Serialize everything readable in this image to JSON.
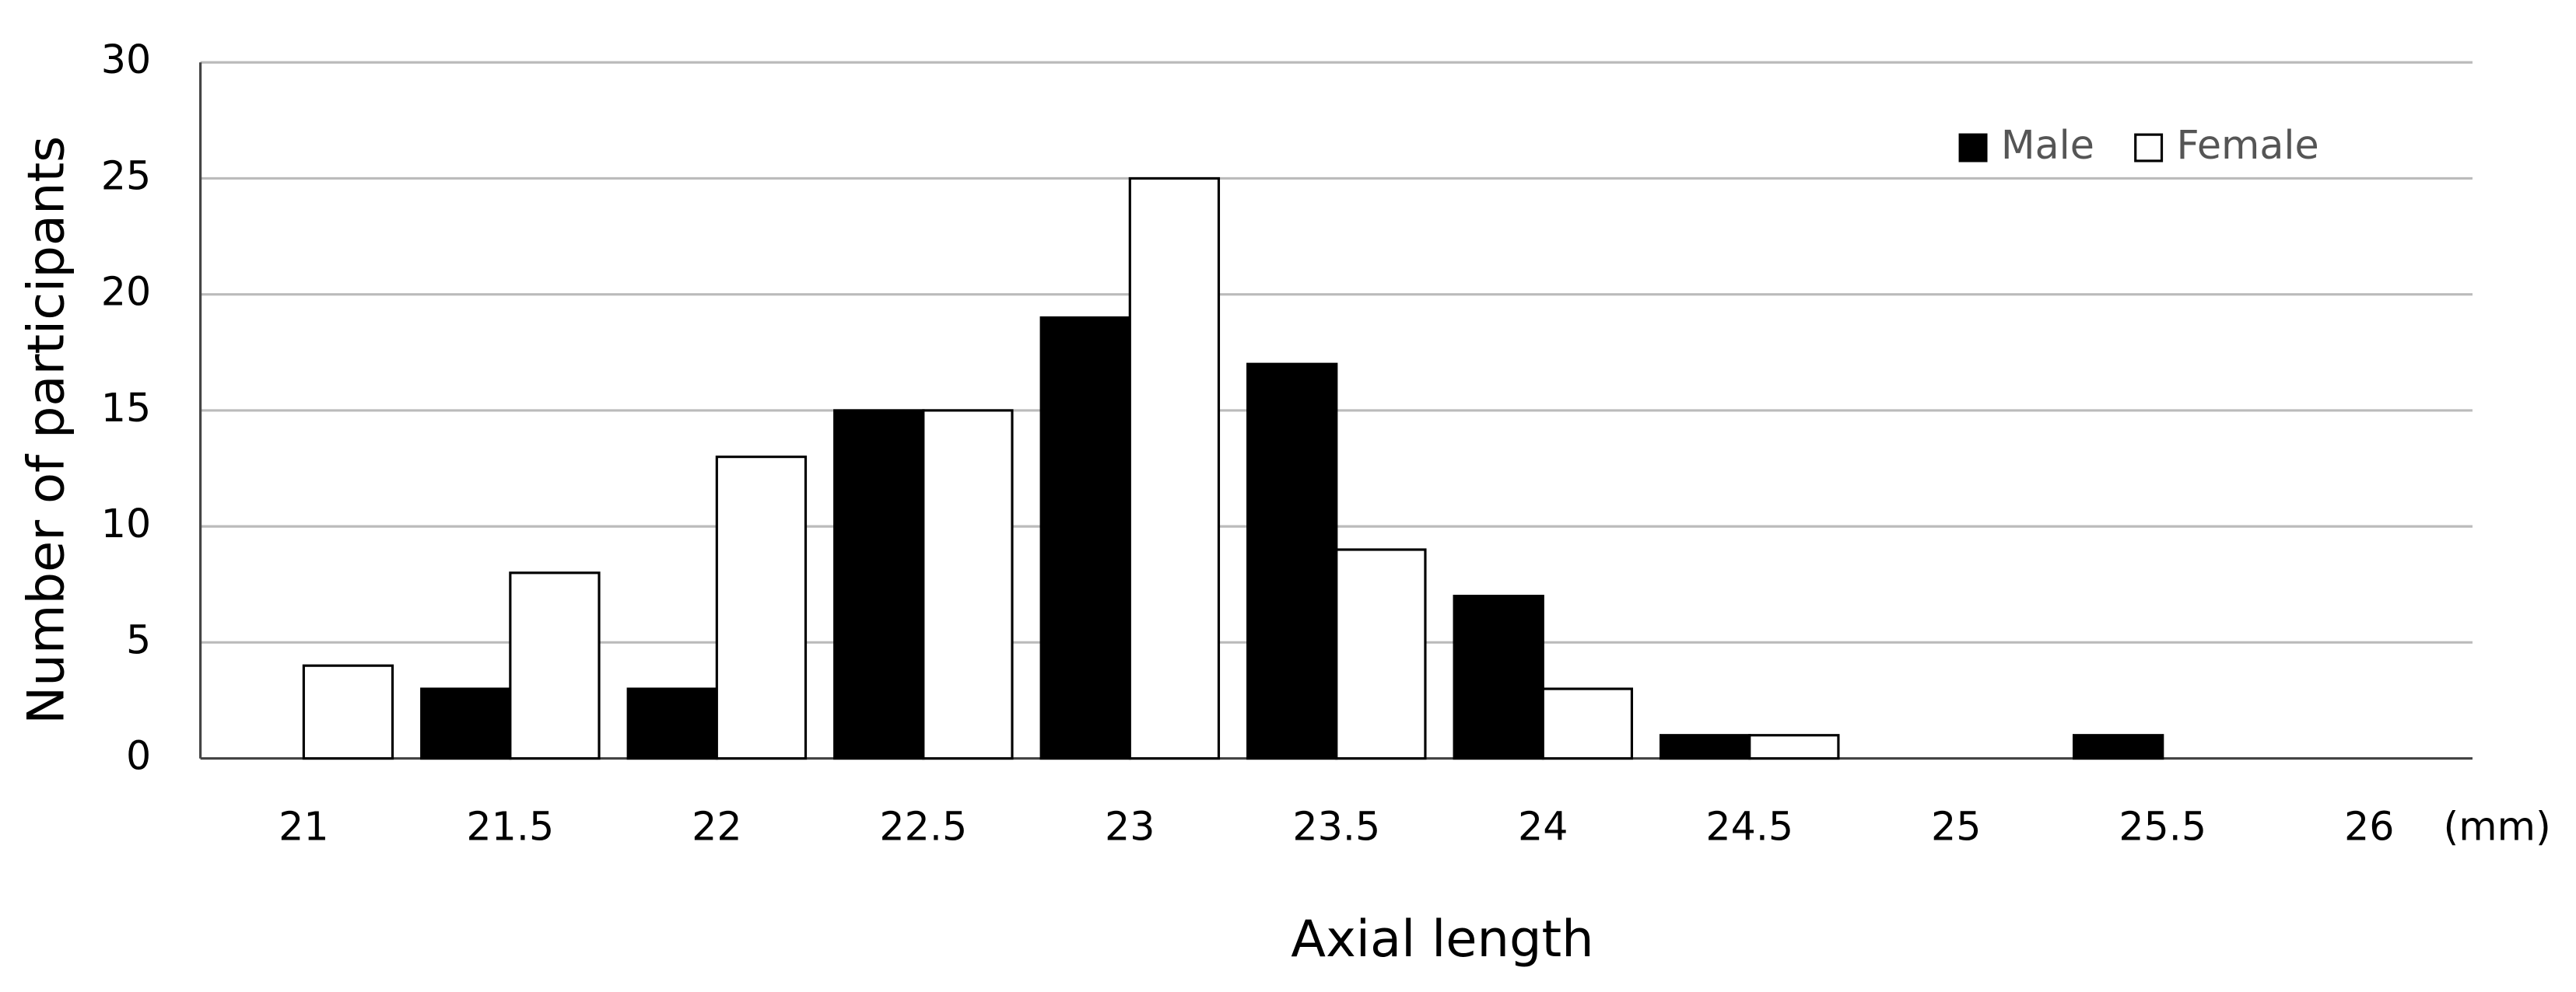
{
  "chart_data": {
    "type": "bar",
    "x_label": "Axial length",
    "y_label": "Number of participants",
    "x_unit": "(mm)",
    "categories": [
      "21",
      "21.5",
      "22",
      "22.5",
      "23",
      "23.5",
      "24",
      "24.5",
      "25",
      "25.5",
      "26"
    ],
    "series": [
      {
        "name": "Male",
        "color": "#000000",
        "values": [
          0,
          3,
          3,
          15,
          19,
          17,
          7,
          1,
          0,
          1,
          0
        ]
      },
      {
        "name": "Female",
        "color": "#ffffff",
        "values": [
          4,
          8,
          13,
          15,
          25,
          9,
          3,
          1,
          0,
          0,
          0
        ]
      }
    ],
    "ylim": [
      0,
      30
    ],
    "yticks": [
      0,
      5,
      10,
      15,
      20,
      25,
      30
    ],
    "grid": true,
    "legend": "upper right"
  }
}
